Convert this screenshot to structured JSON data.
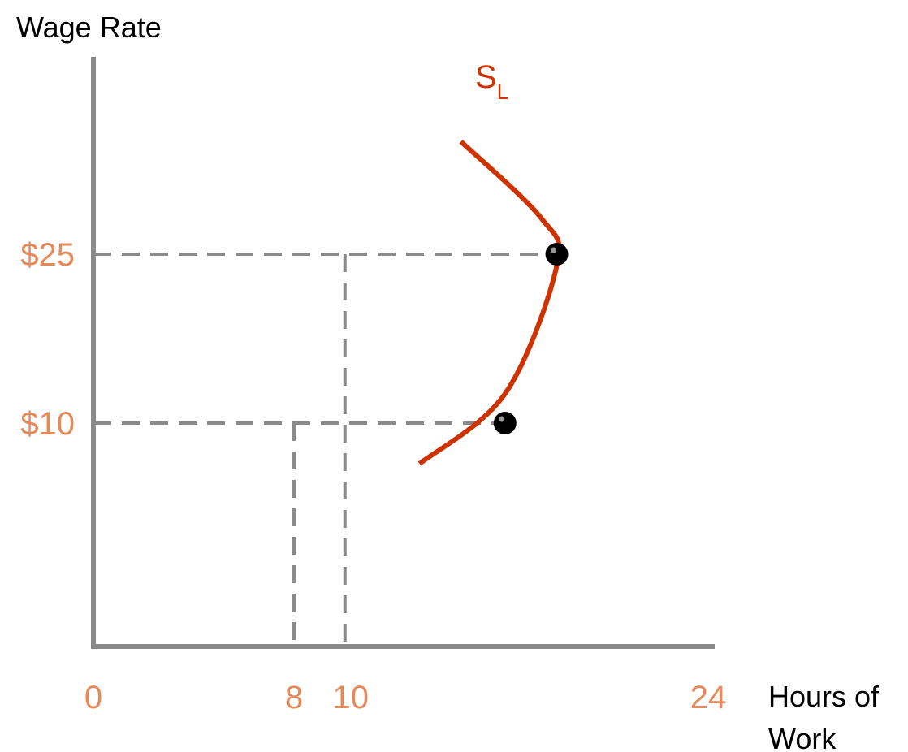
{
  "chart_data": {
    "type": "line",
    "ylabel": "Wage Rate",
    "xlabel_lines": [
      "Hours of",
      "Work"
    ],
    "x_ticks": [
      {
        "value": 0,
        "label": "0"
      },
      {
        "value": 8,
        "label": "8"
      },
      {
        "value": 10,
        "label": "10"
      },
      {
        "value": 24,
        "label": "24"
      }
    ],
    "y_ticks": [
      {
        "value": 10,
        "label": "$10"
      },
      {
        "value": 25,
        "label": "$25"
      }
    ],
    "xlim": [
      0,
      24
    ],
    "ylim": [
      0,
      35
    ],
    "series": [
      {
        "name_main": "S",
        "name_sub": "L",
        "color": "#cc3300",
        "points": [
          {
            "x": 12.6,
            "y": 6.4
          },
          {
            "x": 15.9,
            "y": 12.6
          },
          {
            "x": 17.9,
            "y": 24.0
          },
          {
            "x": 17.3,
            "y": 28.2
          },
          {
            "x": 14.2,
            "y": 35.0
          }
        ]
      }
    ],
    "highlighted_points": [
      {
        "x": 8,
        "y": 10,
        "marker_x": 15.9
      },
      {
        "x": 10,
        "y": 25,
        "marker_x": 17.9
      }
    ],
    "colors": {
      "axis": "#8a8a8a",
      "guide": "#8a8a8a",
      "tick_label": "#e5895a",
      "curve": "#cc3300",
      "marker": "#000000"
    },
    "grid": false
  }
}
